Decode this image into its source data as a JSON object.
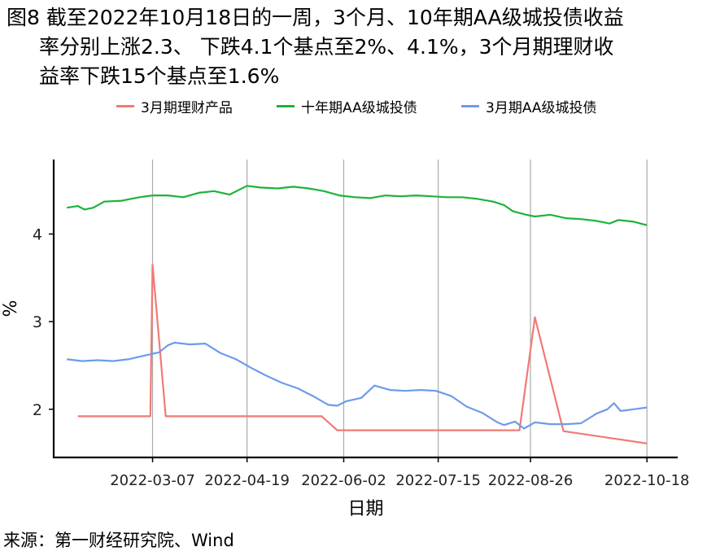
{
  "title_lines": [
    "图8  截至2022年10月18日的一周，3个月、10年期AA级城投债收益",
    "率分别上涨2.3、 下跌4.1个基点至2%、4.1%，3个月期理财收",
    "益率下跌15个基点至1.6%"
  ],
  "source": "来源：第一财经研究院、Wind",
  "chart_data": {
    "type": "line",
    "xlabel": "日期",
    "ylabel": "%",
    "x_tick_labels": [
      "2022-03-07",
      "2022-04-19",
      "2022-06-02",
      "2022-07-15",
      "2022-08-26",
      "2022-10-18"
    ],
    "y_ticks": [
      2,
      3,
      4
    ],
    "xlim": [
      "2022-01-21",
      "2022-11-01"
    ],
    "ylim": [
      1.45,
      4.85
    ],
    "grid": "vertical lines at x ticks",
    "legend_position": "top",
    "series": [
      {
        "name": "3月期理财产品",
        "color": "#F07A75",
        "points": [
          [
            "2022-02-01",
            1.92
          ],
          [
            "2022-03-06",
            1.92
          ],
          [
            "2022-03-07",
            3.65
          ],
          [
            "2022-03-13",
            1.92
          ],
          [
            "2022-05-23",
            1.92
          ],
          [
            "2022-05-30",
            1.76
          ],
          [
            "2022-08-21",
            1.76
          ],
          [
            "2022-08-28",
            3.05
          ],
          [
            "2022-09-10",
            1.75
          ],
          [
            "2022-10-18",
            1.61
          ]
        ]
      },
      {
        "name": "十年期AA级城投债",
        "color": "#1DB33A",
        "points": [
          [
            "2022-01-27",
            4.3
          ],
          [
            "2022-02-01",
            4.32
          ],
          [
            "2022-02-04",
            4.28
          ],
          [
            "2022-02-08",
            4.3
          ],
          [
            "2022-02-13",
            4.37
          ],
          [
            "2022-02-21",
            4.38
          ],
          [
            "2022-03-01",
            4.42
          ],
          [
            "2022-03-07",
            4.44
          ],
          [
            "2022-03-14",
            4.44
          ],
          [
            "2022-03-21",
            4.42
          ],
          [
            "2022-03-28",
            4.47
          ],
          [
            "2022-04-04",
            4.49
          ],
          [
            "2022-04-11",
            4.45
          ],
          [
            "2022-04-19",
            4.55
          ],
          [
            "2022-04-25",
            4.53
          ],
          [
            "2022-05-03",
            4.52
          ],
          [
            "2022-05-10",
            4.54
          ],
          [
            "2022-05-17",
            4.52
          ],
          [
            "2022-05-24",
            4.49
          ],
          [
            "2022-05-31",
            4.44
          ],
          [
            "2022-06-07",
            4.42
          ],
          [
            "2022-06-14",
            4.41
          ],
          [
            "2022-06-21",
            4.44
          ],
          [
            "2022-06-28",
            4.43
          ],
          [
            "2022-07-05",
            4.44
          ],
          [
            "2022-07-12",
            4.43
          ],
          [
            "2022-07-19",
            4.42
          ],
          [
            "2022-07-26",
            4.42
          ],
          [
            "2022-08-02",
            4.4
          ],
          [
            "2022-08-09",
            4.37
          ],
          [
            "2022-08-14",
            4.33
          ],
          [
            "2022-08-18",
            4.26
          ],
          [
            "2022-08-24",
            4.22
          ],
          [
            "2022-08-28",
            4.2
          ],
          [
            "2022-09-04",
            4.22
          ],
          [
            "2022-09-11",
            4.18
          ],
          [
            "2022-09-18",
            4.17
          ],
          [
            "2022-09-25",
            4.15
          ],
          [
            "2022-10-01",
            4.12
          ],
          [
            "2022-10-05",
            4.16
          ],
          [
            "2022-10-12",
            4.14
          ],
          [
            "2022-10-18",
            4.1
          ]
        ]
      },
      {
        "name": "3月期AA级城投债",
        "color": "#6D9BEB",
        "points": [
          [
            "2022-01-27",
            2.57
          ],
          [
            "2022-02-03",
            2.55
          ],
          [
            "2022-02-10",
            2.56
          ],
          [
            "2022-02-17",
            2.55
          ],
          [
            "2022-02-24",
            2.57
          ],
          [
            "2022-03-03",
            2.61
          ],
          [
            "2022-03-10",
            2.65
          ],
          [
            "2022-03-14",
            2.73
          ],
          [
            "2022-03-17",
            2.76
          ],
          [
            "2022-03-24",
            2.74
          ],
          [
            "2022-03-31",
            2.75
          ],
          [
            "2022-04-07",
            2.64
          ],
          [
            "2022-04-14",
            2.57
          ],
          [
            "2022-04-21",
            2.47
          ],
          [
            "2022-04-28",
            2.38
          ],
          [
            "2022-05-05",
            2.3
          ],
          [
            "2022-05-12",
            2.24
          ],
          [
            "2022-05-19",
            2.15
          ],
          [
            "2022-05-26",
            2.05
          ],
          [
            "2022-05-30",
            2.04
          ],
          [
            "2022-06-03",
            2.09
          ],
          [
            "2022-06-10",
            2.13
          ],
          [
            "2022-06-16",
            2.27
          ],
          [
            "2022-06-23",
            2.22
          ],
          [
            "2022-06-30",
            2.21
          ],
          [
            "2022-07-07",
            2.22
          ],
          [
            "2022-07-14",
            2.21
          ],
          [
            "2022-07-21",
            2.15
          ],
          [
            "2022-07-28",
            2.03
          ],
          [
            "2022-08-04",
            1.96
          ],
          [
            "2022-08-11",
            1.85
          ],
          [
            "2022-08-14",
            1.82
          ],
          [
            "2022-08-19",
            1.86
          ],
          [
            "2022-08-23",
            1.78
          ],
          [
            "2022-08-28",
            1.85
          ],
          [
            "2022-09-04",
            1.83
          ],
          [
            "2022-09-11",
            1.83
          ],
          [
            "2022-09-18",
            1.84
          ],
          [
            "2022-09-25",
            1.95
          ],
          [
            "2022-09-30",
            2.0
          ],
          [
            "2022-10-03",
            2.07
          ],
          [
            "2022-10-06",
            1.98
          ],
          [
            "2022-10-12",
            2.0
          ],
          [
            "2022-10-18",
            2.02
          ]
        ]
      }
    ]
  }
}
